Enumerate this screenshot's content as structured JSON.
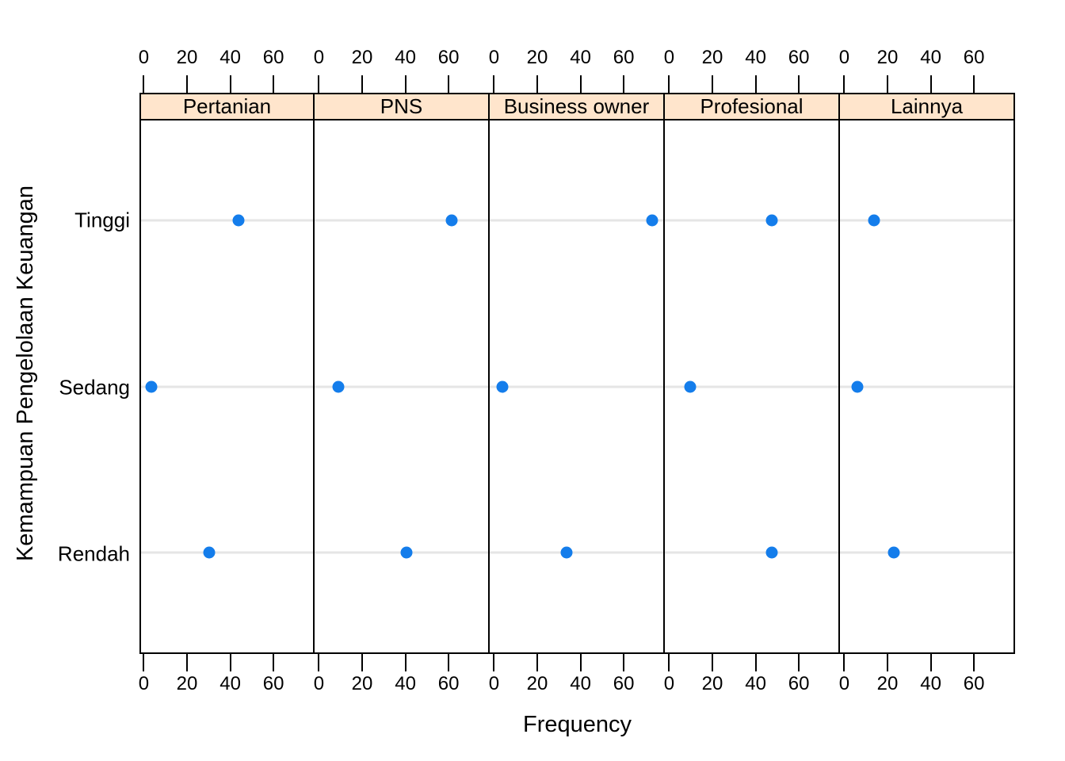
{
  "chart_data": {
    "type": "dotplot",
    "title": "",
    "xlabel": "Frequency",
    "ylabel": "Kemampuan Pengelolaan Keuangan",
    "y_categories": [
      "Tinggi",
      "Sedang",
      "Rendah"
    ],
    "x_ticks": [
      0,
      20,
      40,
      60
    ],
    "xlim": [
      -2,
      79
    ],
    "grid": "horizontal reference lines at each category",
    "legend": "none",
    "panels": [
      {
        "label": "Pertanian",
        "values": [
          44,
          3,
          30
        ]
      },
      {
        "label": "PNS",
        "values": [
          62,
          9,
          41
        ]
      },
      {
        "label": "Business owner",
        "values": [
          74,
          4,
          34
        ]
      },
      {
        "label": "Profesional",
        "values": [
          48,
          10,
          48
        ]
      },
      {
        "label": "Lainnya",
        "values": [
          14,
          6,
          23
        ]
      }
    ],
    "colors": {
      "dot": "#147DEB",
      "strip_background": "#FFE5CC",
      "gridline": "#E5E5E5",
      "border": "#000000",
      "background": "#FFFFFF"
    }
  }
}
